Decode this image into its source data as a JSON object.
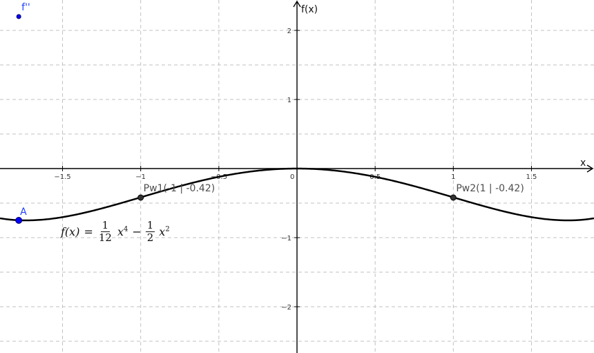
{
  "chart_data": {
    "type": "line",
    "xlabel": "x",
    "ylabel": "f(x)",
    "xlim": [
      -1.9,
      1.9
    ],
    "ylim": [
      -2.67,
      2.44
    ],
    "grid": true,
    "x_ticks": [
      {
        "value": -1.5,
        "label": "−1.5"
      },
      {
        "value": -1,
        "label": "−1"
      },
      {
        "value": -0.5,
        "label": "−0.5"
      },
      {
        "value": 0,
        "label": "0"
      },
      {
        "value": 0.5,
        "label": "0.5"
      },
      {
        "value": 1,
        "label": "1"
      },
      {
        "value": 1.5,
        "label": "1.5"
      }
    ],
    "y_ticks": [
      {
        "value": 2,
        "label": "2"
      },
      {
        "value": 1,
        "label": "1"
      },
      {
        "value": -1,
        "label": "−1"
      },
      {
        "value": -2,
        "label": "−2"
      }
    ],
    "series": [
      {
        "function": "f(x) = 1/12 x^4 - 1/2 x^2",
        "coefficients": {
          "x4": 0.0833,
          "x2": -0.5
        },
        "color": "#000000"
      }
    ],
    "points": [
      {
        "label": "Pw1(-1 | -0.42)",
        "x": -1,
        "y": -0.42,
        "color": "#333333"
      },
      {
        "label": "Pw2(1 | -0.42)",
        "x": 1,
        "y": -0.42,
        "color": "#333333"
      },
      {
        "label": "A",
        "x": -1.78,
        "y": -0.75,
        "color": "#0000ff"
      },
      {
        "label": "f''",
        "x": -1.78,
        "y": 2.2,
        "color": "#0000ff"
      }
    ]
  },
  "formula": {
    "lhs": "f(x)",
    "eq": "=",
    "frac1_num": "1",
    "frac1_den": "12",
    "term1_var": "x",
    "term1_exp": "4",
    "minus": "−",
    "frac2_num": "1",
    "frac2_den": "2",
    "term2_var": "x",
    "term2_exp": "2"
  }
}
